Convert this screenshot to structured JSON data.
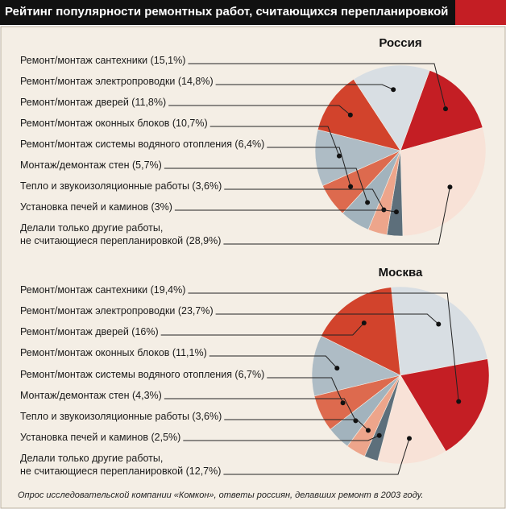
{
  "title": "Рейтинг популярности ремонтных работ, считающихся перепланировкой",
  "note": "Опрос исследовательской компании «Комкон», ответы россиян, делавших ремонт в 2003 году.",
  "chart_data": [
    {
      "type": "pie",
      "title": "Россия",
      "categories": [
        "Ремонт/монтаж сантехники (15,1%)",
        "Ремонт/монтаж электропроводки (14,8%)",
        "Ремонт/монтаж дверей (11,8%)",
        "Ремонт/монтаж оконных блоков (10,7%)",
        "Ремонт/монтаж системы водяного отопления (6,4%)",
        "Монтаж/демонтаж стен (5,7%)",
        "Тепло и звукоизоляционные работы (3,6%)",
        "Установка печей и каминов (3%)",
        "Делали только другие работы,\nне считающиеся перепланировкой (28,9%)"
      ],
      "values": [
        15.1,
        14.8,
        11.8,
        10.7,
        6.4,
        5.7,
        3.6,
        3,
        28.9
      ],
      "colors": [
        "#c41e24",
        "#d8dee3",
        "#d2432c",
        "#aebcc5",
        "#dd6a4e",
        "#a2b3bd",
        "#eda58b",
        "#5d6f7b",
        "#f8e2d7"
      ]
    },
    {
      "type": "pie",
      "title": "Москва",
      "categories": [
        "Ремонт/монтаж сантехники (19,4%)",
        "Ремонт/монтаж электропроводки (23,7%)",
        "Ремонт/монтаж дверей (16%)",
        "Ремонт/монтаж оконных блоков (11,1%)",
        "Ремонт/монтаж системы водяного отопления (6,7%)",
        "Монтаж/демонтаж стен (4,3%)",
        "Тепло и звукоизоляционные работы (3,6%)",
        "Установка печей и каминов (2,5%)",
        "Делали только другие работы,\nне считающиеся перепланировкой (12,7%)"
      ],
      "values": [
        19.4,
        23.7,
        16,
        11.1,
        6.7,
        4.3,
        3.6,
        2.5,
        12.7
      ],
      "colors": [
        "#c41e24",
        "#d8dee3",
        "#d2432c",
        "#aebcc5",
        "#dd6a4e",
        "#a2b3bd",
        "#eda58b",
        "#5d6f7b",
        "#f8e2d7"
      ]
    }
  ]
}
